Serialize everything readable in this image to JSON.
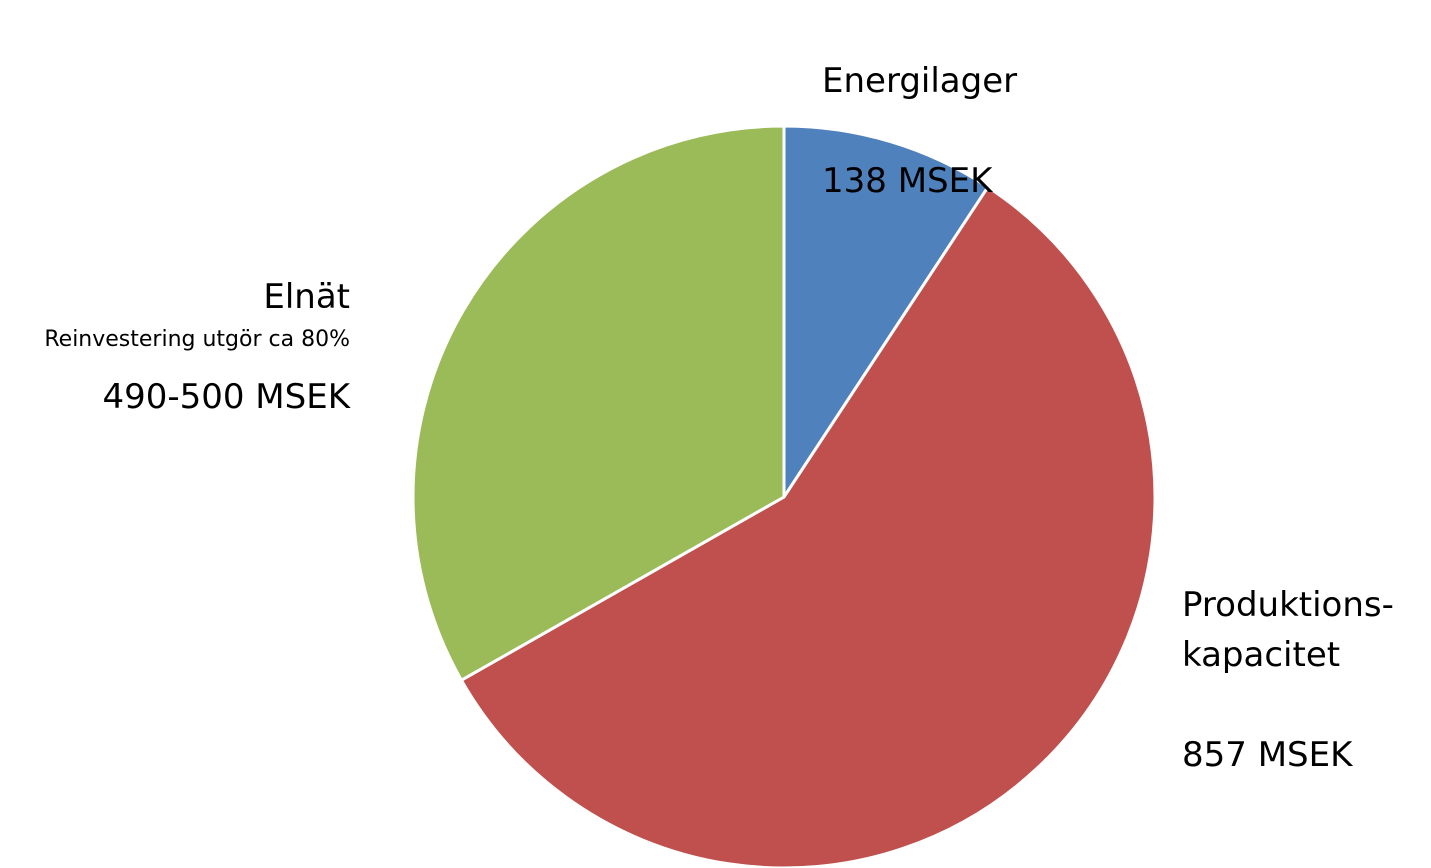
{
  "chart_data": {
    "type": "pie",
    "categories": [
      "Energilager",
      "Produktions-\nkapacitet",
      "Elnät"
    ],
    "values": [
      138,
      857,
      495
    ],
    "value_labels": [
      "138 MSEK",
      "857 MSEK",
      "490-500 MSEK"
    ],
    "colors": [
      "#4f81bd",
      "#c0504d",
      "#9bbb59"
    ],
    "annotations": [
      "Reinvestering utgör ca 80%"
    ]
  }
}
